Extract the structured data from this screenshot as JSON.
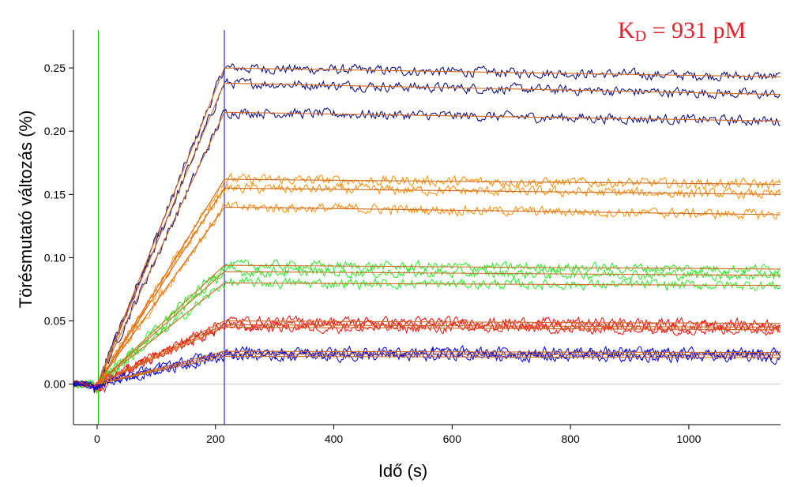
{
  "chart_data": {
    "type": "line",
    "title": "",
    "xlabel": "Idő (s)",
    "ylabel": "Törésmutató változás (%)",
    "xlim": [
      -40,
      1155
    ],
    "ylim": [
      -0.032,
      0.28
    ],
    "x_ticks": [
      0,
      200,
      400,
      600,
      800,
      1000
    ],
    "y_ticks": [
      0.0,
      0.05,
      0.1,
      0.15,
      0.2,
      0.25
    ],
    "x_tick_labels": [
      "0",
      "200",
      "400",
      "600",
      "800",
      "1000"
    ],
    "y_tick_labels": [
      "0.00",
      "0.05",
      "0.10",
      "0.15",
      "0.20",
      "0.25"
    ],
    "grid": false,
    "annotation": {
      "prefix": "K",
      "subscript": "D",
      "text": " = 931 pM",
      "color": "#e8202a"
    },
    "markers": [
      {
        "name": "injection-start",
        "x": 2,
        "color": "#00cc00"
      },
      {
        "name": "dissociation-start",
        "x": 215,
        "color": "#0000ee"
      }
    ],
    "association_end": 215,
    "fit_color": "#d2691e",
    "noise_amplitude": 0.006,
    "series": [
      {
        "name": "conc-1-rep-1",
        "color": "#00007f",
        "plateau": 0.25,
        "end": 0.243
      },
      {
        "name": "conc-1-rep-2",
        "color": "#00007f",
        "plateau": 0.238,
        "end": 0.229
      },
      {
        "name": "conc-1-rep-3",
        "color": "#00007f",
        "plateau": 0.215,
        "end": 0.208
      },
      {
        "name": "conc-2-rep-1",
        "color": "#ff8c00",
        "plateau": 0.162,
        "end": 0.158
      },
      {
        "name": "conc-2-rep-2",
        "color": "#ff8c00",
        "plateau": 0.155,
        "end": 0.15
      },
      {
        "name": "conc-2-rep-3",
        "color": "#ff8c00",
        "plateau": 0.14,
        "end": 0.134
      },
      {
        "name": "conc-3-rep-1",
        "color": "#22ee22",
        "plateau": 0.094,
        "end": 0.091
      },
      {
        "name": "conc-3-rep-2",
        "color": "#22ee22",
        "plateau": 0.089,
        "end": 0.086
      },
      {
        "name": "conc-3-rep-3",
        "color": "#22ee22",
        "plateau": 0.08,
        "end": 0.078
      },
      {
        "name": "conc-4-rep-1",
        "color": "#ee1111",
        "plateau": 0.05,
        "end": 0.048
      },
      {
        "name": "conc-4-rep-2",
        "color": "#ee1111",
        "plateau": 0.047,
        "end": 0.045
      },
      {
        "name": "conc-4-rep-3",
        "color": "#ee1111",
        "plateau": 0.045,
        "end": 0.043
      },
      {
        "name": "conc-5-rep-1",
        "color": "#0000dd",
        "plateau": 0.026,
        "end": 0.025
      },
      {
        "name": "conc-5-rep-2",
        "color": "#0000dd",
        "plateau": 0.024,
        "end": 0.023
      },
      {
        "name": "conc-5-rep-3",
        "color": "#0000dd",
        "plateau": 0.022,
        "end": 0.021
      }
    ]
  }
}
